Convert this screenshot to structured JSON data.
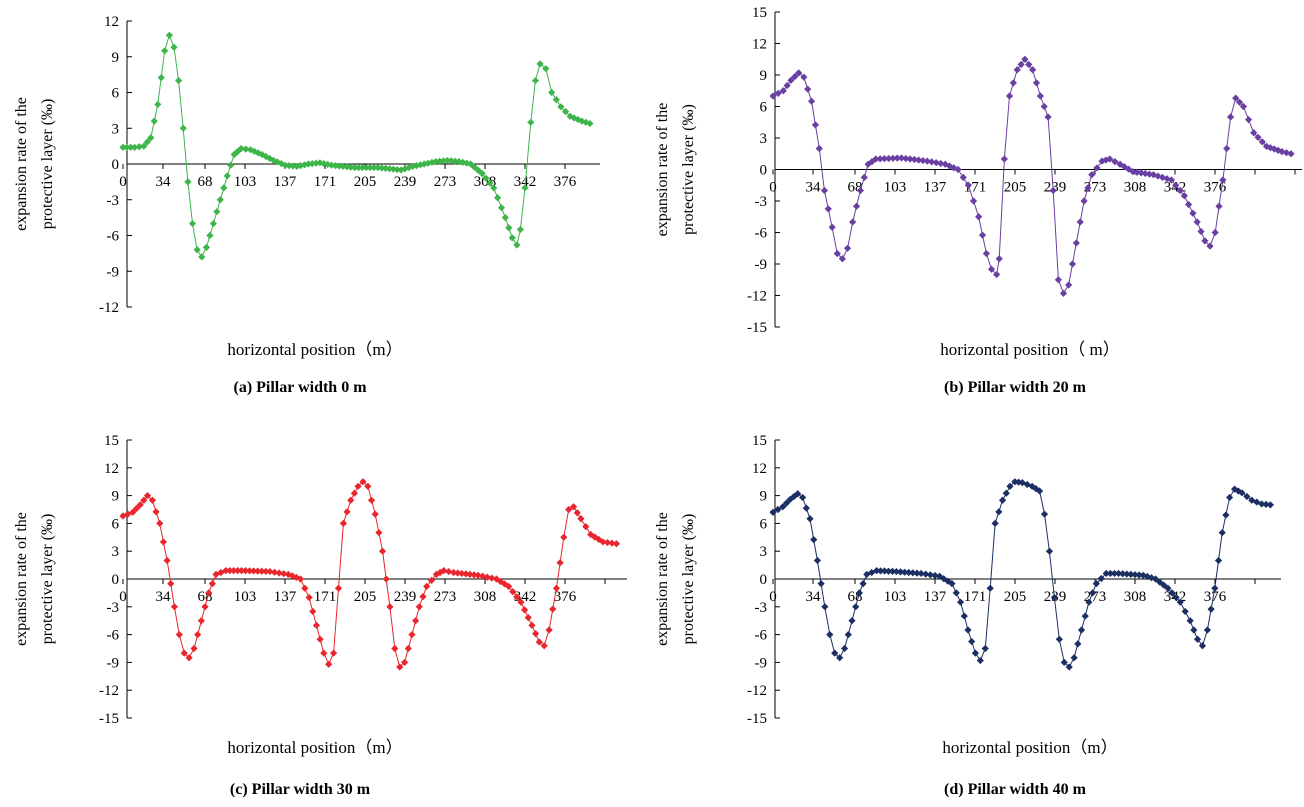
{
  "chart_data": [
    {
      "type": "line",
      "caption": "(a) Pillar width 0 m",
      "xlabel": "horizontal position（m）",
      "ylabel_line1": "expansion rate of the",
      "ylabel_line2": "protective layer  (‰)",
      "x_tick_labels": [
        "0",
        "34",
        "68",
        "103",
        "137",
        "171",
        "205",
        "239",
        "273",
        "308",
        "342",
        "376"
      ],
      "ylim": [
        -12,
        12
      ],
      "y_ticks": [
        12,
        9,
        6,
        3,
        0,
        -3,
        -6,
        -9,
        -12
      ],
      "xlim": [
        0,
        410
      ],
      "color": "#3db549",
      "series": [
        {
          "points": [
            [
              0,
              1.4
            ],
            [
              10,
              1.4
            ],
            [
              18,
              1.5
            ],
            [
              24,
              2.2
            ],
            [
              30,
              5
            ],
            [
              36,
              9.5
            ],
            [
              40,
              10.8
            ],
            [
              44,
              9.8
            ],
            [
              48,
              7
            ],
            [
              52,
              3
            ],
            [
              56,
              -1.5
            ],
            [
              60,
              -5
            ],
            [
              64,
              -7.2
            ],
            [
              68,
              -7.8
            ],
            [
              72,
              -7
            ],
            [
              78,
              -5
            ],
            [
              84,
              -3
            ],
            [
              90,
              -1
            ],
            [
              96,
              0.8
            ],
            [
              102,
              1.3
            ],
            [
              110,
              1.2
            ],
            [
              120,
              0.8
            ],
            [
              130,
              0.3
            ],
            [
              140,
              -0.1
            ],
            [
              150,
              -0.2
            ],
            [
              160,
              0
            ],
            [
              170,
              0.1
            ],
            [
              180,
              -0.1
            ],
            [
              190,
              -0.2
            ],
            [
              200,
              -0.3
            ],
            [
              210,
              -0.3
            ],
            [
              220,
              -0.3
            ],
            [
              230,
              -0.4
            ],
            [
              240,
              -0.5
            ],
            [
              250,
              -0.2
            ],
            [
              260,
              0
            ],
            [
              270,
              0.2
            ],
            [
              280,
              0.3
            ],
            [
              290,
              0.2
            ],
            [
              300,
              0
            ],
            [
              310,
              -0.8
            ],
            [
              320,
              -2
            ],
            [
              330,
              -4.5
            ],
            [
              336,
              -6.2
            ],
            [
              340,
              -6.8
            ],
            [
              343,
              -5.5
            ],
            [
              347,
              -2
            ],
            [
              352,
              3.5
            ],
            [
              356,
              7
            ],
            [
              360,
              8.4
            ],
            [
              365,
              8
            ],
            [
              370,
              6
            ],
            [
              378,
              4.8
            ],
            [
              386,
              4
            ],
            [
              396,
              3.6
            ],
            [
              403,
              3.4
            ]
          ]
        }
      ]
    },
    {
      "type": "line",
      "caption": "(b) Pillar width 20 m",
      "xlabel": "horizontal position（ m）",
      "ylabel_line1": "expansion rate of the",
      "ylabel_line2": "protective layer  (‰)",
      "x_tick_labels": [
        "0",
        "34",
        "68",
        "103",
        "137",
        "171",
        "205",
        "239",
        "273",
        "308",
        "342",
        "376"
      ],
      "ylim": [
        -15,
        15
      ],
      "y_ticks": [
        15,
        12,
        9,
        6,
        3,
        0,
        -3,
        -6,
        -9,
        -12,
        -15
      ],
      "xlim": [
        0,
        410
      ],
      "color": "#6a3fa2",
      "series": [
        {
          "points": [
            [
              0,
              7
            ],
            [
              8,
              7.5
            ],
            [
              14,
              8.5
            ],
            [
              20,
              9.2
            ],
            [
              24,
              8.8
            ],
            [
              30,
              6.5
            ],
            [
              36,
              2
            ],
            [
              40,
              -2
            ],
            [
              46,
              -5.5
            ],
            [
              50,
              -8
            ],
            [
              54,
              -8.5
            ],
            [
              58,
              -7.5
            ],
            [
              62,
              -5
            ],
            [
              68,
              -2
            ],
            [
              74,
              0.5
            ],
            [
              80,
              1
            ],
            [
              100,
              1.1
            ],
            [
              120,
              0.8
            ],
            [
              134,
              0.5
            ],
            [
              144,
              0
            ],
            [
              152,
              -1.5
            ],
            [
              160,
              -4.5
            ],
            [
              166,
              -8
            ],
            [
              170,
              -9.5
            ],
            [
              174,
              -10
            ],
            [
              176,
              -8.5
            ],
            [
              180,
              1
            ],
            [
              184,
              7
            ],
            [
              190,
              9.5
            ],
            [
              196,
              10.5
            ],
            [
              202,
              9.5
            ],
            [
              208,
              7
            ],
            [
              214,
              5
            ],
            [
              218,
              -2
            ],
            [
              222,
              -10.5
            ],
            [
              226,
              -11.8
            ],
            [
              230,
              -11
            ],
            [
              236,
              -7
            ],
            [
              242,
              -3
            ],
            [
              248,
              -0.5
            ],
            [
              256,
              0.8
            ],
            [
              262,
              1
            ],
            [
              270,
              0.5
            ],
            [
              280,
              -0.2
            ],
            [
              296,
              -0.5
            ],
            [
              310,
              -1
            ],
            [
              320,
              -2.5
            ],
            [
              330,
              -5
            ],
            [
              336,
              -6.8
            ],
            [
              340,
              -7.3
            ],
            [
              344,
              -6
            ],
            [
              350,
              -1
            ],
            [
              356,
              5
            ],
            [
              360,
              6.8
            ],
            [
              366,
              6
            ],
            [
              374,
              3.5
            ],
            [
              384,
              2.2
            ],
            [
              396,
              1.7
            ],
            [
              403,
              1.5
            ]
          ]
        }
      ]
    },
    {
      "type": "line",
      "caption": "(c) Pillar width 30 m",
      "xlabel": "horizontal position（m）",
      "ylabel_line1": "expansion rate of the",
      "ylabel_line2": "protective layer  (‰)",
      "x_tick_labels": [
        "0",
        "34",
        "68",
        "103",
        "137",
        "171",
        "205",
        "239",
        "273",
        "308",
        "342",
        "376"
      ],
      "ylim": [
        -15,
        15
      ],
      "y_ticks": [
        15,
        12,
        9,
        6,
        3,
        0,
        -3,
        -6,
        -9,
        -12,
        -15
      ],
      "xlim": [
        0,
        410
      ],
      "color": "#e8262d",
      "series": [
        {
          "points": [
            [
              0,
              6.8
            ],
            [
              8,
              7.2
            ],
            [
              14,
              8
            ],
            [
              20,
              9
            ],
            [
              24,
              8.5
            ],
            [
              30,
              6
            ],
            [
              36,
              2
            ],
            [
              42,
              -3
            ],
            [
              46,
              -6
            ],
            [
              50,
              -8
            ],
            [
              54,
              -8.5
            ],
            [
              58,
              -7.5
            ],
            [
              64,
              -4.5
            ],
            [
              70,
              -1.5
            ],
            [
              76,
              0.5
            ],
            [
              84,
              0.9
            ],
            [
              100,
              0.9
            ],
            [
              120,
              0.8
            ],
            [
              135,
              0.5
            ],
            [
              145,
              0
            ],
            [
              152,
              -2
            ],
            [
              158,
              -5
            ],
            [
              164,
              -8
            ],
            [
              168,
              -9.2
            ],
            [
              172,
              -8
            ],
            [
              176,
              -1
            ],
            [
              180,
              6
            ],
            [
              186,
              8.5
            ],
            [
              192,
              10
            ],
            [
              196,
              10.5
            ],
            [
              200,
              10
            ],
            [
              206,
              7
            ],
            [
              212,
              3
            ],
            [
              218,
              -3
            ],
            [
              222,
              -7.5
            ],
            [
              226,
              -9.5
            ],
            [
              230,
              -9
            ],
            [
              236,
              -6
            ],
            [
              242,
              -3
            ],
            [
              248,
              -0.8
            ],
            [
              256,
              0.5
            ],
            [
              262,
              0.9
            ],
            [
              270,
              0.7
            ],
            [
              290,
              0.4
            ],
            [
              305,
              0
            ],
            [
              315,
              -0.8
            ],
            [
              325,
              -2.5
            ],
            [
              334,
              -5
            ],
            [
              340,
              -6.8
            ],
            [
              344,
              -7.2
            ],
            [
              348,
              -5.5
            ],
            [
              354,
              -1
            ],
            [
              360,
              4.5
            ],
            [
              364,
              7.5
            ],
            [
              368,
              7.8
            ],
            [
              374,
              6.5
            ],
            [
              382,
              4.8
            ],
            [
              392,
              4
            ],
            [
              403,
              3.8
            ]
          ]
        }
      ]
    },
    {
      "type": "line",
      "caption": "(d) Pillar width 40 m",
      "xlabel": "horizontal position（m）",
      "ylabel_line1": "expansion rate of the",
      "ylabel_line2": "protective layer  (‰)",
      "x_tick_labels": [
        "0",
        "34",
        "68",
        "103",
        "137",
        "171",
        "205",
        "239",
        "273",
        "308",
        "342",
        "376"
      ],
      "ylim": [
        -15,
        15
      ],
      "y_ticks": [
        15,
        12,
        9,
        6,
        3,
        0,
        -3,
        -6,
        -9,
        -12,
        -15
      ],
      "xlim": [
        0,
        410
      ],
      "color": "#1b2f63",
      "series": [
        {
          "points": [
            [
              0,
              7.2
            ],
            [
              8,
              7.8
            ],
            [
              14,
              8.6
            ],
            [
              20,
              9.2
            ],
            [
              24,
              8.8
            ],
            [
              30,
              6.5
            ],
            [
              36,
              2
            ],
            [
              42,
              -3
            ],
            [
              46,
              -6
            ],
            [
              50,
              -8
            ],
            [
              54,
              -8.5
            ],
            [
              58,
              -7.5
            ],
            [
              64,
              -4.5
            ],
            [
              70,
              -1.5
            ],
            [
              76,
              0.5
            ],
            [
              84,
              0.9
            ],
            [
              100,
              0.8
            ],
            [
              120,
              0.6
            ],
            [
              135,
              0.3
            ],
            [
              145,
              -0.5
            ],
            [
              152,
              -2.5
            ],
            [
              158,
              -5.5
            ],
            [
              164,
              -8
            ],
            [
              168,
              -8.8
            ],
            [
              172,
              -7.5
            ],
            [
              176,
              -1
            ],
            [
              180,
              6
            ],
            [
              186,
              8.5
            ],
            [
              192,
              10
            ],
            [
              196,
              10.5
            ],
            [
              202,
              10.4
            ],
            [
              210,
              10
            ],
            [
              216,
              9.5
            ],
            [
              220,
              7
            ],
            [
              224,
              3
            ],
            [
              228,
              -2
            ],
            [
              232,
              -6.5
            ],
            [
              236,
              -9
            ],
            [
              240,
              -9.5
            ],
            [
              244,
              -8.5
            ],
            [
              250,
              -5.5
            ],
            [
              256,
              -2.5
            ],
            [
              262,
              -0.5
            ],
            [
              270,
              0.6
            ],
            [
              280,
              0.6
            ],
            [
              300,
              0.4
            ],
            [
              310,
              0
            ],
            [
              320,
              -1
            ],
            [
              330,
              -2.5
            ],
            [
              338,
              -4.5
            ],
            [
              344,
              -6.5
            ],
            [
              348,
              -7.2
            ],
            [
              352,
              -5.5
            ],
            [
              358,
              -1
            ],
            [
              364,
              5
            ],
            [
              370,
              8.8
            ],
            [
              374,
              9.7
            ],
            [
              380,
              9.3
            ],
            [
              388,
              8.5
            ],
            [
              396,
              8.1
            ],
            [
              403,
              8
            ]
          ]
        }
      ]
    }
  ]
}
